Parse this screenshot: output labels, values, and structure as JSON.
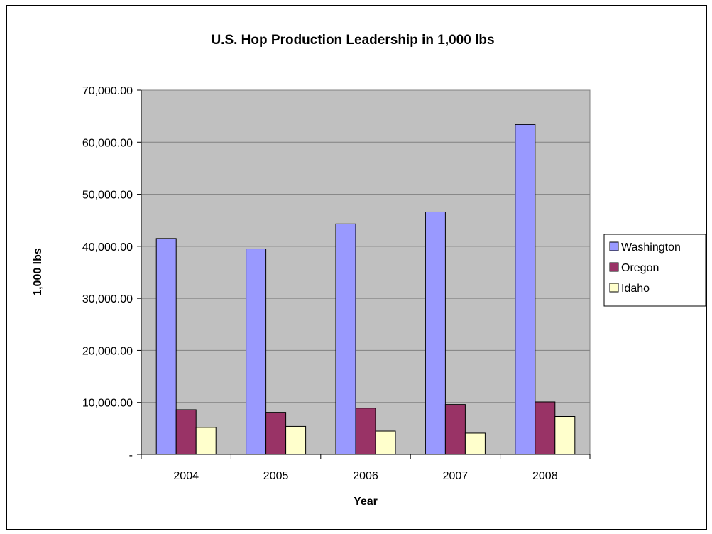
{
  "chart_data": {
    "type": "bar",
    "title": "U.S. Hop Production Leadership in 1,000 lbs",
    "xlabel": "Year",
    "ylabel": "1,000 lbs",
    "categories": [
      "2004",
      "2005",
      "2006",
      "2007",
      "2008"
    ],
    "ylim": [
      0,
      70000
    ],
    "yticks": [
      0,
      10000,
      20000,
      30000,
      40000,
      50000,
      60000,
      70000
    ],
    "ytick_labels": [
      "-",
      "10,000.00",
      "20,000.00",
      "30,000.00",
      "40,000.00",
      "50,000.00",
      "60,000.00",
      "70,000.00"
    ],
    "grid": true,
    "legend_position": "right",
    "plot_background": "#c0c0c0",
    "series": [
      {
        "name": "Washington",
        "color": "#9999ff",
        "values": [
          41500,
          39500,
          44300,
          46600,
          63400
        ]
      },
      {
        "name": "Oregon",
        "color": "#993366",
        "values": [
          8600,
          8100,
          8900,
          9600,
          10100
        ]
      },
      {
        "name": "Idaho",
        "color": "#ffffcc",
        "values": [
          5200,
          5400,
          4500,
          4100,
          7300
        ]
      }
    ]
  }
}
